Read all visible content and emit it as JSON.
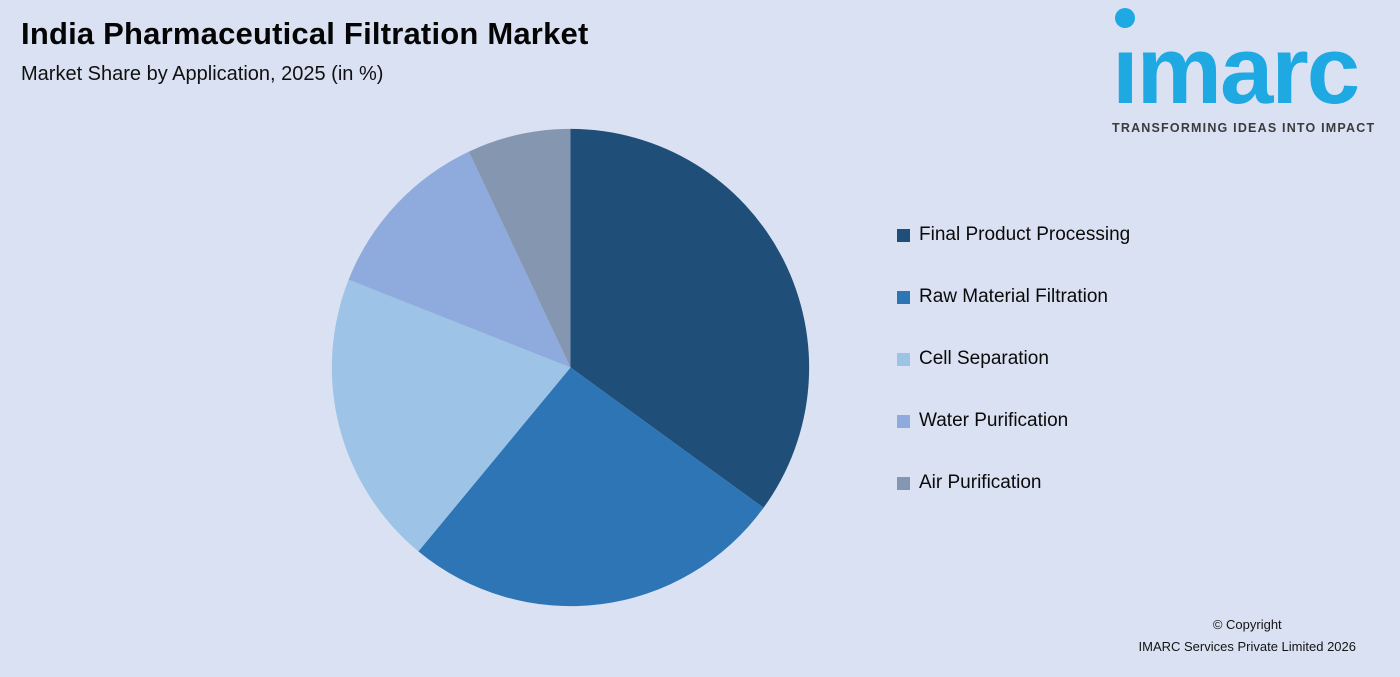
{
  "header": {
    "title": "India Pharmaceutical Filtration Market",
    "subtitle": "Market Share by Application, 2025 (in %)"
  },
  "logo": {
    "brand": "imarc",
    "tagline": "TRANSFORMING IDEAS INTO IMPACT",
    "color": "#1ea9e2"
  },
  "page": {
    "background": "#d9e1f2"
  },
  "chart_data": {
    "type": "pie",
    "title": "India Pharmaceutical Filtration Market",
    "subtitle": "Market Share by Application, 2025 (in %)",
    "unit": "%",
    "start_angle_deg": 0,
    "direction": "clockwise",
    "legend_position": "right",
    "data_labels_shown": false,
    "segments": [
      {
        "label": "Final Product Processing",
        "value": 35,
        "color": "#1f4e79"
      },
      {
        "label": "Raw Material Filtration",
        "value": 26,
        "color": "#2e75b6"
      },
      {
        "label": "Cell Separation",
        "value": 20,
        "color": "#9dc3e6"
      },
      {
        "label": "Water Purification",
        "value": 12,
        "color": "#8faadc"
      },
      {
        "label": "Air Purification",
        "value": 7,
        "color": "#8496b0"
      }
    ]
  },
  "footer": {
    "line1": "© Copyright",
    "line2": "IMARC Services Private Limited 2026"
  }
}
